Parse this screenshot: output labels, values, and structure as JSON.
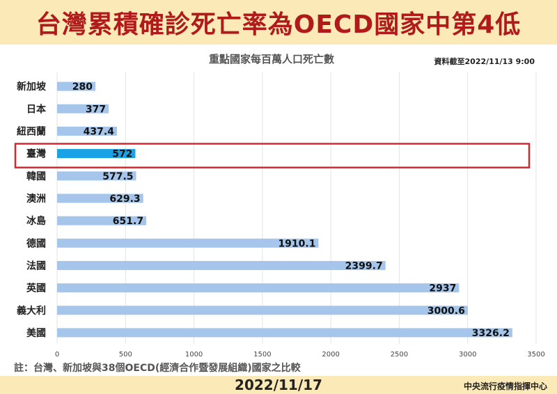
{
  "header": {
    "title": "台灣累積確診死亡率為OECD國家中第4低"
  },
  "chart": {
    "subtitle": "重點國家每百萬人口死亡數",
    "data_as_of": "資料截至2022/11/13 9:00"
  },
  "footer": {
    "note": "註：台灣、新加坡與38個OECD(經濟合作暨發展組織)國家之比較",
    "date": "2022/11/17",
    "org": "中央流行疫情指揮中心"
  },
  "colors": {
    "bar": "#a5c6ea",
    "highlight_bar": "#1aa2e6",
    "highlight_box": "#d9262c",
    "title": "#b01a1a",
    "band": "#fbe9b8"
  },
  "chart_data": {
    "type": "bar",
    "orientation": "horizontal",
    "title": "重點國家每百萬人口死亡數",
    "categories": [
      "新加坡",
      "日本",
      "紐西蘭",
      "臺灣",
      "韓國",
      "澳洲",
      "冰島",
      "德國",
      "法國",
      "英國",
      "義大利",
      "美國"
    ],
    "values": [
      280,
      377,
      437.4,
      572,
      577.5,
      629.3,
      651.7,
      1910.1,
      2399.7,
      2937,
      3000.6,
      3326.2
    ],
    "value_labels": [
      "280",
      "377",
      "437.4",
      "572",
      "577.5",
      "629.3",
      "651.7",
      "1910.1",
      "2399.7",
      "2937",
      "3000.6",
      "3326.2"
    ],
    "highlight": "臺灣",
    "xlim": [
      0,
      3500
    ],
    "xticks": [
      0,
      500,
      1000,
      1500,
      2000,
      2500,
      3000,
      3500
    ],
    "grid": true
  }
}
